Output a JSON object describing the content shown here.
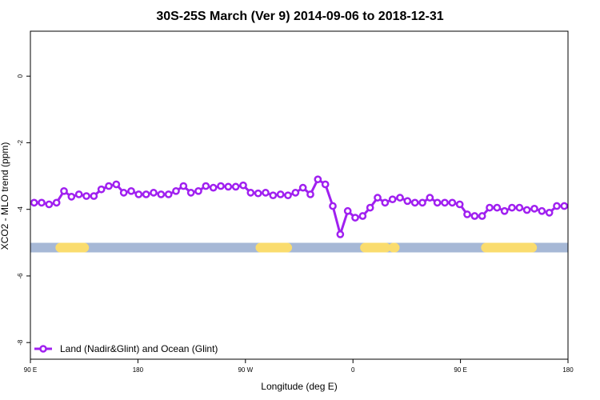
{
  "chart_data": {
    "type": "line",
    "title": "30S-25S March (Ver 9)   2014-09-06 to 2018-12-31",
    "xlabel": "Longitude (deg E)",
    "ylabel": "XCO2 - MLO trend (ppm)",
    "xlim": [
      90,
      450
    ],
    "ylim": [
      -8.5,
      1.35
    ],
    "x_ticks": [
      {
        "value": 90,
        "label": "90 E"
      },
      {
        "value": 162,
        "label": "180"
      },
      {
        "value": 234,
        "label": "90 W"
      },
      {
        "value": 306,
        "label": "0"
      },
      {
        "value": 378,
        "label": "90 E"
      },
      {
        "value": 450,
        "label": "180"
      }
    ],
    "y_ticks": [
      {
        "value": 0,
        "label": "0"
      },
      {
        "value": -2,
        "label": "-2"
      },
      {
        "value": -4,
        "label": "-4"
      },
      {
        "value": -6,
        "label": "-6"
      },
      {
        "value": -8,
        "label": "-8"
      }
    ],
    "grid": false,
    "legend_position": "bottom-left",
    "series": [
      {
        "name": "Land (Nadir&Glint) and Ocean (Glint)",
        "color": "#a020f0",
        "x": [
          92.5,
          97.5,
          102.5,
          107.5,
          112.5,
          117.5,
          122.5,
          127.5,
          132.5,
          137.5,
          142.5,
          147.5,
          152.5,
          157.5,
          162.5,
          167.5,
          172.5,
          177.5,
          182.5,
          187.5,
          192.5,
          197.5,
          202.5,
          207.5,
          212.5,
          217.5,
          222.5,
          227.5,
          232.5,
          237.5,
          242.5,
          247.5,
          252.5,
          257.5,
          262.5,
          267.5,
          272.5,
          277.5,
          282.5,
          287.5,
          292.5,
          297.5,
          302.5,
          307.5,
          312.5,
          317.5,
          322.5,
          327.5,
          332.5,
          337.5,
          342.5,
          347.5,
          352.5,
          357.5,
          362.5,
          367.5,
          372.5,
          377.5,
          382.5,
          387.5,
          392.5,
          397.5,
          402.5,
          407.5,
          412.5,
          417.5,
          422.5,
          427.5,
          432.5,
          437.5,
          442.5,
          447.5
        ],
        "y": [
          -3.8,
          -3.8,
          -3.85,
          -3.8,
          -3.45,
          -3.62,
          -3.55,
          -3.6,
          -3.6,
          -3.4,
          -3.3,
          -3.25,
          -3.5,
          -3.45,
          -3.55,
          -3.55,
          -3.5,
          -3.55,
          -3.55,
          -3.45,
          -3.3,
          -3.5,
          -3.45,
          -3.3,
          -3.35,
          -3.3,
          -3.32,
          -3.32,
          -3.28,
          -3.5,
          -3.52,
          -3.5,
          -3.58,
          -3.55,
          -3.58,
          -3.5,
          -3.35,
          -3.55,
          -3.1,
          -3.25,
          -3.9,
          -4.75,
          -4.05,
          -4.25,
          -4.2,
          -3.95,
          -3.65,
          -3.8,
          -3.7,
          -3.65,
          -3.75,
          -3.8,
          -3.8,
          -3.65,
          -3.8,
          -3.8,
          -3.8,
          -3.85,
          -4.15,
          -4.2,
          -4.2,
          -3.95,
          -3.95,
          -4.05,
          -3.95,
          -3.95,
          -4.02,
          -3.98,
          -4.05,
          -4.1,
          -3.9,
          -3.9
        ]
      }
    ],
    "bar_y": -5.15,
    "bar_ocean_color": "#a6b8d6",
    "bar_land_color": "#fadc6e",
    "land_segments": [
      [
        110,
        126
      ],
      [
        244,
        262
      ],
      [
        314,
        328
      ],
      [
        333,
        334
      ],
      [
        395,
        426
      ]
    ]
  }
}
